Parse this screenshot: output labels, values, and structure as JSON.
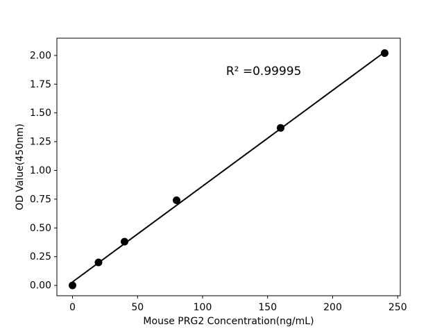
{
  "figure": {
    "background": "#ffffff",
    "foreground": "#000000"
  },
  "chart_data": {
    "type": "scatter",
    "title": "",
    "xlabel": "Mouse PRG2 Concentration(ng/mL)",
    "ylabel": "OD Value(450nm)",
    "points": {
      "x": [
        0,
        20,
        40,
        80,
        160,
        240
      ],
      "y": [
        0.0,
        0.2,
        0.38,
        0.74,
        1.37,
        2.02
      ]
    },
    "fit_line": {
      "x": [
        0,
        240
      ],
      "y": [
        0.03,
        2.03
      ]
    },
    "annotation": {
      "text": "R² =0.99995",
      "x": 147,
      "y": 1.83
    },
    "xlim": [
      -12,
      252
    ],
    "ylim": [
      -0.09,
      2.15
    ],
    "x_ticks": [
      0,
      50,
      100,
      150,
      200,
      250
    ],
    "y_ticks": [
      0.0,
      0.25,
      0.5,
      0.75,
      1.0,
      1.25,
      1.5,
      1.75,
      2.0
    ],
    "grid": false,
    "legend": null,
    "marker": {
      "shape": "circle",
      "color": "#000000",
      "radius": 5.5
    },
    "line_color": "#000000",
    "axis_color": "#000000"
  }
}
